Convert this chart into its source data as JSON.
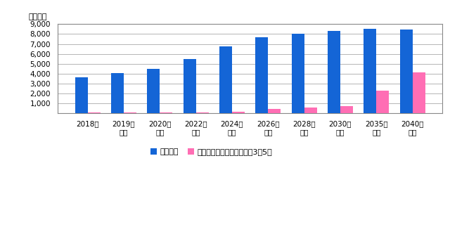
{
  "categories": [
    "2018年",
    "2019年\n見込",
    "2020年\n予測",
    "2022年\n予測",
    "2024年\n予測",
    "2026年\n予測",
    "2028年\n予測",
    "2030年\n予測",
    "2035年\n予測",
    "2040年\n予測"
  ],
  "adas_values": [
    3650,
    4050,
    4500,
    5500,
    6750,
    7650,
    8050,
    8300,
    8550,
    8450
  ],
  "auto_values": [
    50,
    60,
    70,
    80,
    180,
    400,
    550,
    700,
    2250,
    4100
  ],
  "adas_color": "#1465d6",
  "auto_color": "#ff6eb4",
  "ylabel": "（万台）",
  "ylim": [
    0,
    9000
  ],
  "yticks": [
    0,
    1000,
    2000,
    3000,
    4000,
    5000,
    6000,
    7000,
    8000,
    9000
  ],
  "ytick_labels": [
    "",
    "1,000",
    "2,000",
    "3,000",
    "4,000",
    "5,000",
    "6,000",
    "7,000",
    "8,000",
    "9,000"
  ],
  "legend_adas": "ＡＤＡＳ",
  "legend_auto": "自動運転システム（レベル3～5）",
  "background_color": "#ffffff",
  "grid_color": "#aaaaaa",
  "bar_width": 0.35,
  "outer_border_color": "#888888"
}
